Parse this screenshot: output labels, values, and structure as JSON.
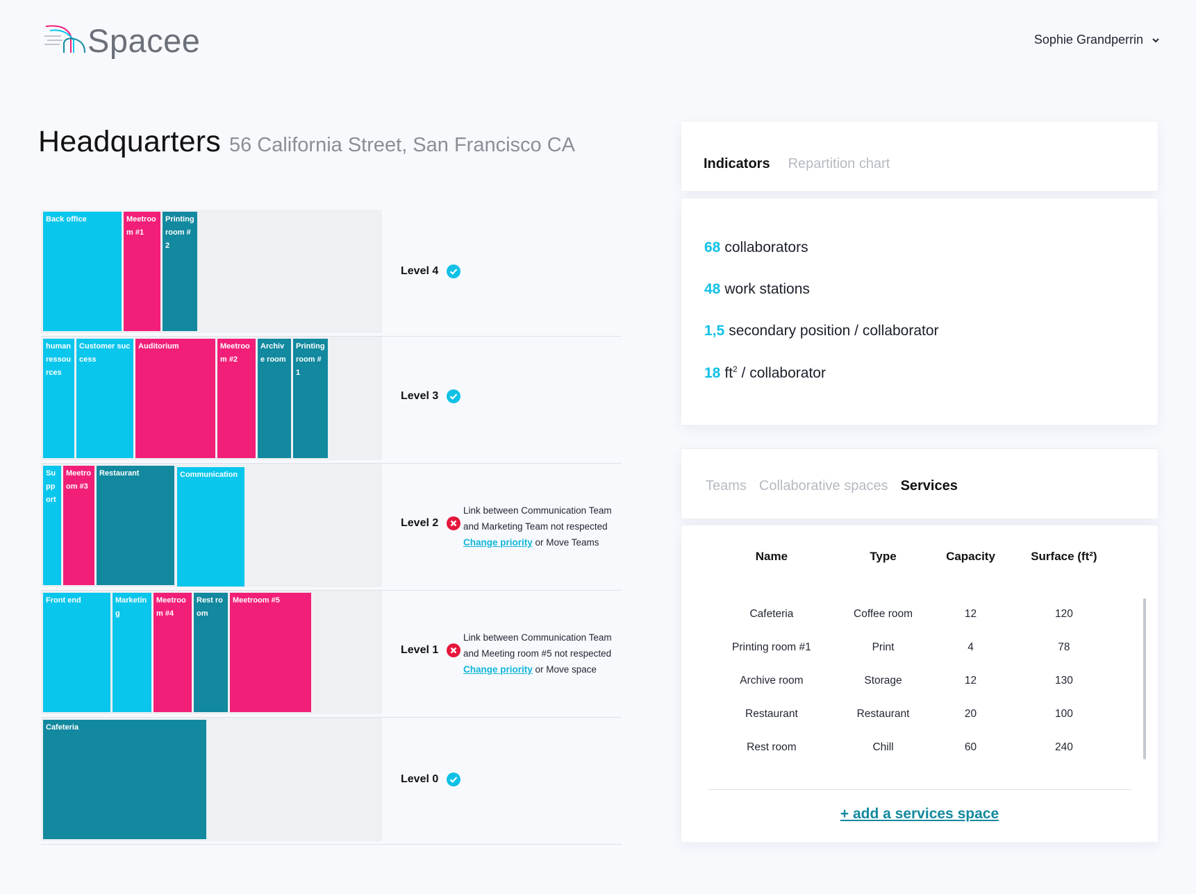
{
  "app": {
    "name": "Spacee",
    "user": "Sophie Grandperrin"
  },
  "colors": {
    "light": "#09c6ec",
    "pink": "#f21f78",
    "teal": "#12899f",
    "ok": "#10c1e5",
    "error": "#e6163d"
  },
  "site": {
    "name": "Headquarters",
    "address": "56 California Street, San Francisco CA"
  },
  "levels": [
    {
      "label": "Level 4",
      "status": "ok",
      "rooms": [
        "Back office",
        "Meetroom #1",
        "Printing room #2"
      ]
    },
    {
      "label": "Level 3",
      "status": "ok",
      "rooms": [
        "human ressources",
        "Customer success",
        "Auditorium",
        "Meetroom #2",
        "Archive room",
        "Printing room #1"
      ]
    },
    {
      "label": "Level 2",
      "status": "error",
      "rooms": [
        "Support",
        "Meetroom #3",
        "Restaurant",
        "Communication"
      ],
      "warning": {
        "line1": "Link between Communication Team",
        "line2": "and Marketing Team not respected",
        "link": "Change priority",
        "rest": " or Move Teams"
      }
    },
    {
      "label": "Level 1",
      "status": "error",
      "rooms": [
        "Front end",
        "Marketing",
        "Meetroom #4",
        "Rest room",
        "Meetroom #5"
      ],
      "warning": {
        "line1": "Link between Communication Team",
        "line2": "and Meeting room #5 not respected",
        "link": "Change priority",
        "rest": " or Move space"
      }
    },
    {
      "label": "Level 0",
      "status": "ok",
      "rooms": [
        "Cafeteria"
      ]
    }
  ],
  "indicators_panel": {
    "tabs": [
      "Indicators",
      "Repartition chart"
    ],
    "active_tab": "Indicators",
    "rows": [
      {
        "value": "68",
        "text": "collaborators"
      },
      {
        "value": "48",
        "text": "work stations"
      },
      {
        "value": "1,5",
        "text": "secondary position / collaborator"
      },
      {
        "value": "18",
        "unit": "ft",
        "sup": "2",
        "text": " / collaborator"
      }
    ]
  },
  "spaces_panel": {
    "tabs": [
      "Teams",
      "Collaborative spaces",
      "Services"
    ],
    "active_tab": "Services",
    "columns": [
      "Name",
      "Type",
      "Capacity",
      "Surface (ft²)"
    ],
    "rows": [
      [
        "Cafeteria",
        "Coffee room",
        "12",
        "120"
      ],
      [
        "Printing room #1",
        "Print",
        "4",
        "78"
      ],
      [
        "Archive room",
        "Storage",
        "12",
        "130"
      ],
      [
        "Restaurant",
        "Restaurant",
        "20",
        "100"
      ],
      [
        "Rest room",
        "Chill",
        "60",
        "240"
      ]
    ],
    "add_link": "+ add a services space"
  }
}
